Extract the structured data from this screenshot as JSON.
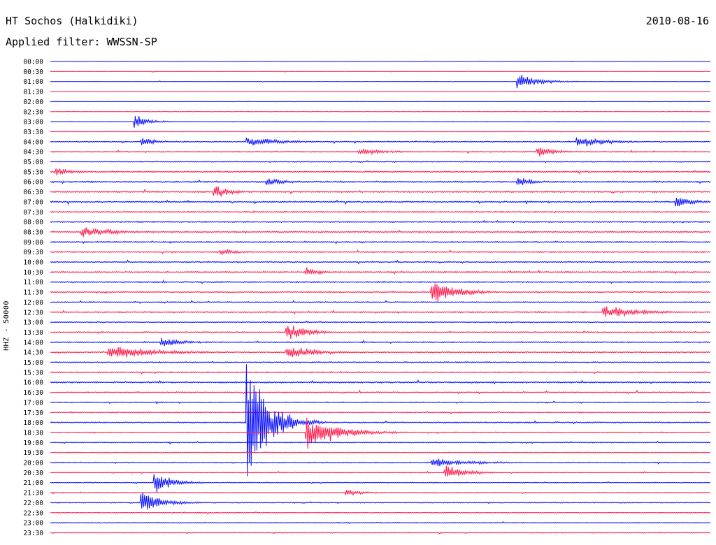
{
  "header": {
    "station": "HT Sochos (Halkidiki)",
    "date": "2010-08-16",
    "filter": "Applied filter: WWSSN-SP"
  },
  "yaxis_label": "HHZ - 50000",
  "colors": {
    "trace_a": "#0a10ff",
    "trace_b": "#ff1a4d",
    "text": "#000000",
    "background": "#ffffff"
  },
  "chart_data": {
    "type": "line",
    "row_labels": [
      "00:00",
      "00:30",
      "01:00",
      "01:30",
      "02:00",
      "02:30",
      "03:00",
      "03:30",
      "04:00",
      "04:30",
      "05:00",
      "05:30",
      "06:00",
      "06:30",
      "07:00",
      "07:30",
      "08:00",
      "08:30",
      "09:00",
      "09:30",
      "10:00",
      "10:30",
      "11:00",
      "11:30",
      "12:00",
      "12:30",
      "13:00",
      "13:30",
      "14:00",
      "14:30",
      "15:00",
      "15:30",
      "16:00",
      "16:30",
      "17:00",
      "17:30",
      "18:00",
      "18:30",
      "19:00",
      "19:30",
      "20:00",
      "20:30",
      "21:00",
      "21:30",
      "22:00",
      "22:30",
      "23:00",
      "23:30"
    ],
    "row_colors": [
      "#0a10ff",
      "#ff1a4d"
    ],
    "noise_level": [
      0.25,
      0.3,
      0.25,
      0.25,
      0.25,
      0.3,
      0.35,
      0.35,
      0.6,
      0.6,
      0.5,
      0.8,
      0.8,
      0.8,
      0.8,
      0.7,
      0.7,
      0.8,
      0.7,
      0.7,
      0.7,
      0.8,
      0.7,
      0.7,
      0.6,
      0.7,
      0.6,
      0.7,
      0.7,
      0.7,
      0.7,
      0.7,
      0.8,
      0.7,
      0.6,
      0.6,
      0.7,
      0.6,
      0.6,
      0.5,
      0.6,
      0.5,
      0.5,
      0.5,
      0.5,
      0.5,
      0.5,
      0.5
    ],
    "events": [
      {
        "row": 2,
        "pos": 0.71,
        "amp": 8,
        "dur": 0.03
      },
      {
        "row": 6,
        "pos": 0.13,
        "amp": 7,
        "dur": 0.02
      },
      {
        "row": 8,
        "pos": 0.3,
        "amp": 5,
        "dur": 0.05
      },
      {
        "row": 8,
        "pos": 0.14,
        "amp": 6,
        "dur": 0.02
      },
      {
        "row": 8,
        "pos": 0.8,
        "amp": 7,
        "dur": 0.04
      },
      {
        "row": 9,
        "pos": 0.74,
        "amp": 8,
        "dur": 0.02
      },
      {
        "row": 9,
        "pos": 0.47,
        "amp": 4,
        "dur": 0.04
      },
      {
        "row": 11,
        "pos": 0.01,
        "amp": 4,
        "dur": 0.03
      },
      {
        "row": 12,
        "pos": 0.33,
        "amp": 4,
        "dur": 0.03
      },
      {
        "row": 12,
        "pos": 0.71,
        "amp": 6,
        "dur": 0.02
      },
      {
        "row": 13,
        "pos": 0.25,
        "amp": 8,
        "dur": 0.02
      },
      {
        "row": 14,
        "pos": 0.95,
        "amp": 6,
        "dur": 0.03
      },
      {
        "row": 17,
        "pos": 0.05,
        "amp": 6,
        "dur": 0.05
      },
      {
        "row": 19,
        "pos": 0.26,
        "amp": 4,
        "dur": 0.02
      },
      {
        "row": 21,
        "pos": 0.39,
        "amp": 5,
        "dur": 0.02
      },
      {
        "row": 23,
        "pos": 0.58,
        "amp": 15,
        "dur": 0.035
      },
      {
        "row": 25,
        "pos": 0.84,
        "amp": 8,
        "dur": 0.05
      },
      {
        "row": 27,
        "pos": 0.36,
        "amp": 10,
        "dur": 0.03
      },
      {
        "row": 28,
        "pos": 0.17,
        "amp": 6,
        "dur": 0.03
      },
      {
        "row": 29,
        "pos": 0.09,
        "amp": 8,
        "dur": 0.07
      },
      {
        "row": 29,
        "pos": 0.36,
        "amp": 8,
        "dur": 0.04
      },
      {
        "row": 36,
        "pos": 0.3,
        "amp": 70,
        "dur": 0.03
      },
      {
        "row": 37,
        "pos": 0.39,
        "amp": 18,
        "dur": 0.045
      },
      {
        "row": 40,
        "pos": 0.58,
        "amp": 5,
        "dur": 0.06
      },
      {
        "row": 41,
        "pos": 0.6,
        "amp": 8,
        "dur": 0.03
      },
      {
        "row": 42,
        "pos": 0.16,
        "amp": 12,
        "dur": 0.025
      },
      {
        "row": 43,
        "pos": 0.45,
        "amp": 5,
        "dur": 0.02
      },
      {
        "row": 44,
        "pos": 0.14,
        "amp": 12,
        "dur": 0.03
      }
    ]
  }
}
